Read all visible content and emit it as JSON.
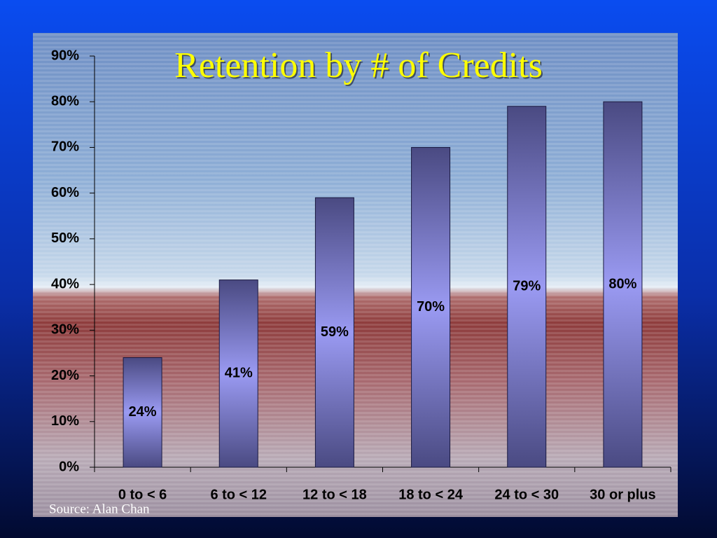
{
  "chart_data": {
    "type": "bar",
    "title": "Retention by # of Credits",
    "categories": [
      "0 to < 6",
      "6 to < 12",
      "12 to < 18",
      "18 to < 24",
      "24 to < 30",
      "30 or plus"
    ],
    "values": [
      24,
      41,
      59,
      70,
      79,
      80
    ],
    "value_labels": [
      "24%",
      "41%",
      "59%",
      "70%",
      "79%",
      "80%"
    ],
    "color": "#8c8ce8",
    "ylim": [
      0,
      90
    ],
    "yticks": [
      {
        "value": 0,
        "label": "0%"
      },
      {
        "value": 10,
        "label": "10%"
      },
      {
        "value": 20,
        "label": "20%"
      },
      {
        "value": 30,
        "label": "30%"
      },
      {
        "value": 40,
        "label": "40%"
      },
      {
        "value": 50,
        "label": "50%"
      },
      {
        "value": 60,
        "label": "60%"
      },
      {
        "value": 70,
        "label": "70%"
      },
      {
        "value": 80,
        "label": "80%"
      },
      {
        "value": 90,
        "label": "90%"
      }
    ],
    "source": "Source: Alan Chan"
  }
}
